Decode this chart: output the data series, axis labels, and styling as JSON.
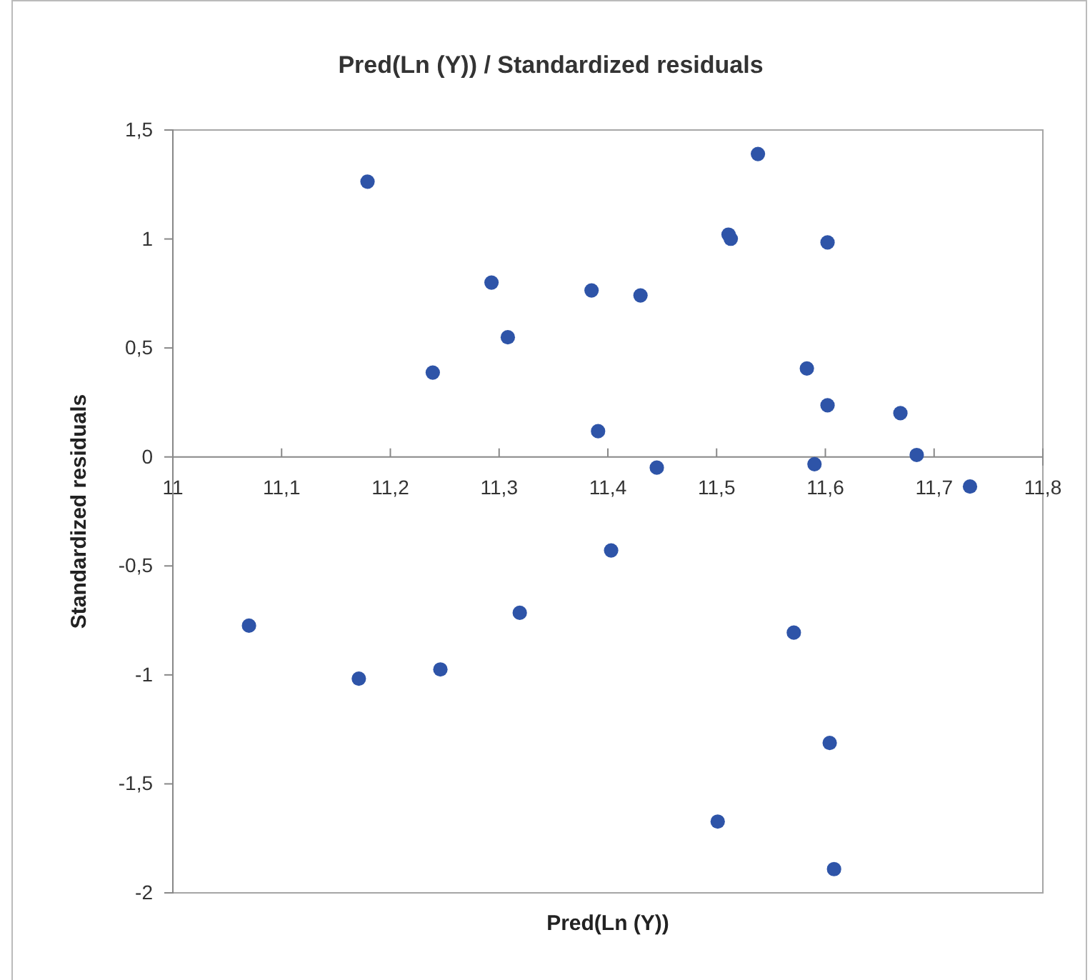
{
  "chart_data": {
    "type": "scatter",
    "title": "Pred(Ln (Y)) / Standardized residuals",
    "xlabel": "Pred(Ln (Y))",
    "ylabel": "Standardized residuals",
    "x": [
      11.179,
      11.293,
      11.385,
      11.308,
      11.239,
      11.391,
      11.403,
      11.07,
      11.319,
      11.171,
      11.246,
      11.538,
      11.511,
      11.513,
      11.602,
      11.43,
      11.583,
      11.602,
      11.669,
      11.684,
      11.445,
      11.59,
      11.733,
      11.571,
      11.604,
      11.501,
      11.608
    ],
    "series": [
      {
        "color": "#2e54a8",
        "values": [
          1.263,
          0.8,
          0.764,
          0.549,
          0.387,
          0.118,
          -0.429,
          -0.774,
          -0.715,
          -1.017,
          -0.975,
          1.39,
          1.02,
          1.001,
          0.984,
          0.741,
          0.406,
          0.237,
          0.201,
          0.009,
          -0.049,
          -0.033,
          -0.136,
          -0.806,
          -1.312,
          -1.673,
          -1.891
        ]
      }
    ],
    "xlim": [
      11,
      11.8
    ],
    "xticks": [
      {
        "value": 11,
        "label": "11"
      },
      {
        "value": 11.1,
        "label": "11,1"
      },
      {
        "value": 11.2,
        "label": "11,2"
      },
      {
        "value": 11.3,
        "label": "11,3"
      },
      {
        "value": 11.4,
        "label": "11,4"
      },
      {
        "value": 11.5,
        "label": "11,5"
      },
      {
        "value": 11.6,
        "label": "11,6"
      },
      {
        "value": 11.7,
        "label": "11,7"
      },
      {
        "value": 11.8,
        "label": "11,8"
      }
    ],
    "ylim": [
      -2,
      1.5
    ],
    "yticks": [
      {
        "value": -2,
        "label": "-2"
      },
      {
        "value": -1.5,
        "label": "-1,5"
      },
      {
        "value": -1,
        "label": "-1"
      },
      {
        "value": -0.5,
        "label": "-0,5"
      },
      {
        "value": 0,
        "label": "0"
      },
      {
        "value": 0.5,
        "label": "0,5"
      },
      {
        "value": 1,
        "label": "1"
      },
      {
        "value": 1.5,
        "label": "1,5"
      }
    ],
    "grid": false,
    "marker": "circle"
  }
}
